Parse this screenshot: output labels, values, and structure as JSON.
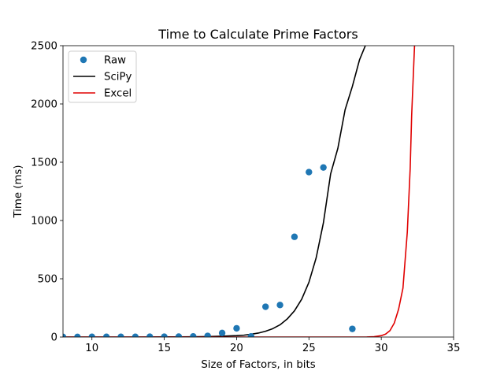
{
  "chart_data": {
    "type": "scatter",
    "title": "Time to Calculate Prime Factors",
    "xlabel": "Size of Factors, in bits",
    "ylabel": "Time (ms)",
    "xlim": [
      8,
      35
    ],
    "ylim": [
      0,
      2500
    ],
    "xticks": [
      10,
      15,
      20,
      25,
      30,
      35
    ],
    "yticks": [
      0,
      500,
      1000,
      1500,
      2000,
      2500
    ],
    "legend_position": "top-left",
    "grid": false,
    "colors": {
      "Raw": "#1f77b4",
      "SciPy": "#000000",
      "Excel": "#e00000"
    },
    "series": [
      {
        "name": "Raw",
        "kind": "scatter",
        "x": [
          8,
          9,
          10,
          11,
          12,
          13,
          14,
          15,
          16,
          17,
          18,
          19,
          20,
          21,
          22,
          23,
          24,
          25,
          26,
          28
        ],
        "y": [
          1,
          1,
          2,
          2,
          2,
          2,
          3,
          3,
          4,
          5,
          10,
          35,
          75,
          5,
          260,
          275,
          860,
          1415,
          1455,
          70
        ]
      },
      {
        "name": "SciPy",
        "kind": "line",
        "x": [
          8,
          9,
          10,
          11,
          12,
          13,
          14,
          15,
          16,
          17,
          18,
          19,
          20,
          20.5,
          21,
          21.5,
          22,
          22.5,
          23,
          23.5,
          24,
          24.5,
          25,
          25.5,
          26,
          26.5,
          27,
          27.5,
          28,
          28.5,
          28.9
        ],
        "y": [
          0,
          0,
          0,
          0,
          0,
          0,
          0.5,
          1,
          1.5,
          2.5,
          4,
          7,
          12,
          16,
          24,
          34,
          50,
          72,
          105,
          155,
          225,
          325,
          470,
          680,
          980,
          1400,
          1620,
          1950,
          2150,
          2380,
          2500
        ]
      },
      {
        "name": "Excel",
        "kind": "line",
        "x": [
          8,
          12,
          16,
          20,
          24,
          27,
          28,
          28.5,
          29,
          29.5,
          30,
          30.3,
          30.6,
          30.9,
          31.2,
          31.5,
          31.8,
          32.0,
          32.1,
          32.3
        ],
        "y": [
          0,
          0,
          0,
          0,
          0,
          0,
          0,
          0,
          0.5,
          3,
          12,
          25,
          55,
          120,
          240,
          420,
          900,
          1450,
          1900,
          2500
        ]
      }
    ]
  }
}
